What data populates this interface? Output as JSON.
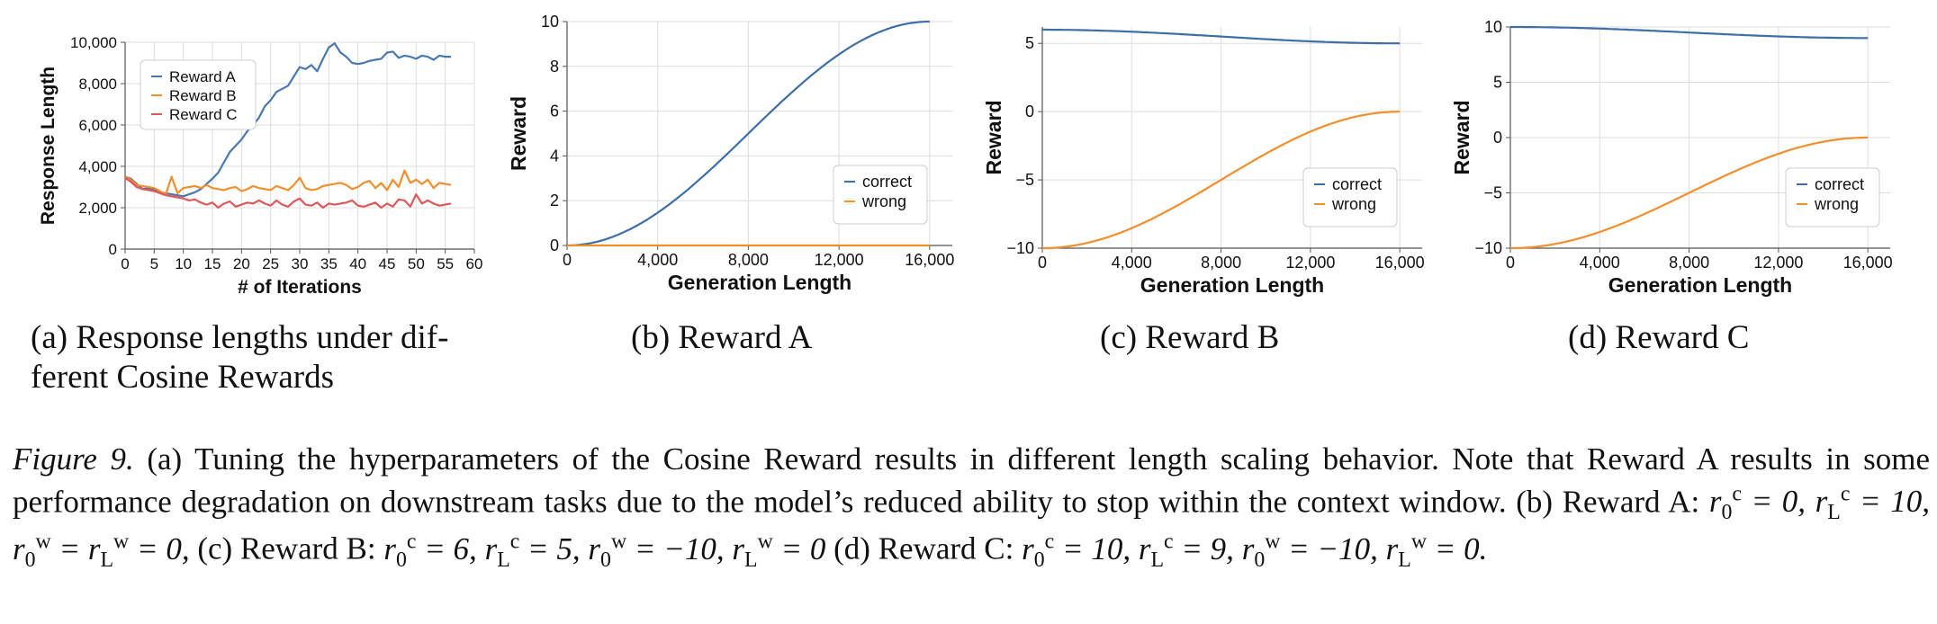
{
  "colors": {
    "correct": "#3e6ea8",
    "wrong": "#f28e2b",
    "reward_a": "#4878b0",
    "reward_b": "#f28e2b",
    "reward_c": "#e15759",
    "grid": "#dddddd"
  },
  "chart_data": [
    {
      "id": "a",
      "type": "line",
      "title": "",
      "xlabel": "# of Iterations",
      "ylabel": "Response Length",
      "xlim": [
        0,
        60
      ],
      "ylim": [
        0,
        10000
      ],
      "xticks": [
        0,
        5,
        10,
        15,
        20,
        25,
        30,
        35,
        40,
        45,
        50,
        55,
        60
      ],
      "yticks": [
        0,
        2000,
        4000,
        6000,
        8000,
        10000
      ],
      "ytick_labels": [
        "0",
        "2,000",
        "4,000",
        "6,000",
        "8,000",
        "10,000"
      ],
      "legend": "top-left",
      "x": [
        0,
        1,
        2,
        3,
        4,
        5,
        6,
        7,
        8,
        9,
        10,
        11,
        12,
        13,
        14,
        15,
        16,
        17,
        18,
        19,
        20,
        21,
        22,
        23,
        24,
        25,
        26,
        27,
        28,
        29,
        30,
        31,
        32,
        33,
        34,
        35,
        36,
        37,
        38,
        39,
        40,
        41,
        42,
        43,
        44,
        45,
        46,
        47,
        48,
        49,
        50,
        51,
        52,
        53,
        54,
        55,
        56
      ],
      "series": [
        {
          "name": "Reward A",
          "color": "#4878b0",
          "values": [
            3500,
            3400,
            3150,
            2900,
            2950,
            2850,
            2750,
            2700,
            2650,
            2600,
            2550,
            2650,
            2750,
            2900,
            3150,
            3400,
            3700,
            4200,
            4700,
            5000,
            5300,
            5700,
            6000,
            6350,
            6900,
            7200,
            7600,
            7750,
            7900,
            8350,
            8800,
            8700,
            8900,
            8600,
            9200,
            9750,
            9950,
            9500,
            9300,
            9000,
            8950,
            9000,
            9100,
            9150,
            9200,
            9500,
            9550,
            9250,
            9350,
            9300,
            9200,
            9350,
            9300,
            9150,
            9350,
            9300,
            9300
          ]
        },
        {
          "name": "Reward B",
          "color": "#f28e2b",
          "values": [
            3500,
            3350,
            3100,
            3050,
            3000,
            2950,
            2800,
            2650,
            3500,
            2700,
            2950,
            3000,
            3050,
            2950,
            3100,
            2950,
            2900,
            2850,
            2950,
            3000,
            2800,
            2900,
            3050,
            2950,
            2900,
            2850,
            3050,
            2950,
            2850,
            3100,
            3450,
            2950,
            2850,
            2900,
            3050,
            3100,
            3150,
            3200,
            3100,
            2900,
            3000,
            3200,
            3300,
            2950,
            3200,
            2850,
            3350,
            3000,
            3800,
            3200,
            3350,
            3150,
            3350,
            2950,
            3200,
            3150,
            3100
          ]
        },
        {
          "name": "Reward C",
          "color": "#e15759",
          "values": [
            3450,
            3250,
            3000,
            2900,
            2850,
            2800,
            2700,
            2600,
            2550,
            2500,
            2450,
            2350,
            2400,
            2250,
            2150,
            2250,
            2000,
            2200,
            2300,
            2050,
            2150,
            2250,
            2200,
            2350,
            2200,
            2100,
            2350,
            2150,
            2050,
            2300,
            2450,
            2150,
            2100,
            2250,
            2000,
            2200,
            2150,
            2200,
            2250,
            2350,
            2100,
            2050,
            2150,
            2250,
            2000,
            2200,
            2050,
            2400,
            2350,
            2050,
            2650,
            2200,
            2350,
            2200,
            2100,
            2150,
            2200
          ]
        }
      ]
    },
    {
      "id": "b",
      "type": "line",
      "title": "Reward A",
      "xlabel": "Generation Length",
      "ylabel": "Reward",
      "xlim": [
        0,
        17000
      ],
      "ylim": [
        0,
        10
      ],
      "xticks": [
        0,
        4000,
        8000,
        12000,
        16000
      ],
      "xtick_labels": [
        "0",
        "4,000",
        "8,000",
        "12,000",
        "16,000"
      ],
      "yticks": [
        0,
        2,
        4,
        6,
        8,
        10
      ],
      "legend": "bottom-right",
      "x_max_data": 16000,
      "series": [
        {
          "name": "correct",
          "color": "#3e6ea8",
          "r0": 0,
          "rL": 10
        },
        {
          "name": "wrong",
          "color": "#f28e2b",
          "r0": 0,
          "rL": 0
        }
      ]
    },
    {
      "id": "c",
      "type": "line",
      "title": "Reward B",
      "xlabel": "Generation Length",
      "ylabel": "Reward",
      "xlim": [
        0,
        17000
      ],
      "ylim": [
        -10,
        6.2
      ],
      "xticks": [
        0,
        4000,
        8000,
        12000,
        16000
      ],
      "xtick_labels": [
        "0",
        "4,000",
        "8,000",
        "12,000",
        "16,000"
      ],
      "yticks": [
        -10,
        -5,
        0,
        5
      ],
      "ytick_labels": [
        "−10",
        "−5",
        "0",
        "5"
      ],
      "legend": "bottom-right",
      "x_max_data": 16000,
      "series": [
        {
          "name": "correct",
          "color": "#3e6ea8",
          "r0": 6,
          "rL": 5
        },
        {
          "name": "wrong",
          "color": "#f28e2b",
          "r0": -10,
          "rL": 0
        }
      ]
    },
    {
      "id": "d",
      "type": "line",
      "title": "Reward C",
      "xlabel": "Generation Length",
      "ylabel": "Reward",
      "xlim": [
        0,
        17000
      ],
      "ylim": [
        -10,
        10
      ],
      "xticks": [
        0,
        4000,
        8000,
        12000,
        16000
      ],
      "xtick_labels": [
        "0",
        "4,000",
        "8,000",
        "12,000",
        "16,000"
      ],
      "yticks": [
        -10,
        -5,
        0,
        5,
        10
      ],
      "ytick_labels": [
        "−10",
        "−5",
        "0",
        "5",
        "10"
      ],
      "legend": "bottom-right",
      "x_max_data": 16000,
      "series": [
        {
          "name": "correct",
          "color": "#3e6ea8",
          "r0": 10,
          "rL": 9
        },
        {
          "name": "wrong",
          "color": "#f28e2b",
          "r0": -10,
          "rL": 0
        }
      ]
    }
  ],
  "captions": {
    "a": "(a) Response lengths under dif-ferent Cosine Rewards",
    "a_line1": "(a) Response lengths under dif-",
    "a_line2": "ferent Cosine Rewards",
    "b": "(b) Reward A",
    "c": "(c) Reward B",
    "d": "(d) Reward C"
  },
  "figure_caption": {
    "label": "Figure 9.",
    "text": "(a) Tuning the hyperparameters of the Cosine Reward results in different length scaling behavior. Note that Reward A results in some performance degradation on downstream tasks due to the model’s reduced ability to stop within the context window. (b) Reward A:",
    "params_b": "r0c = 0, rLc = 10, r0w = rLw = 0,",
    "label_c": "(c) Reward B:",
    "params_c": "r0c = 6, rLc = 5, r0w = −10, rLw = 0",
    "label_d": "(d) Reward C:",
    "params_d": "r0c = 10, rLc = 9, r0w = −10, rLw = 0."
  }
}
